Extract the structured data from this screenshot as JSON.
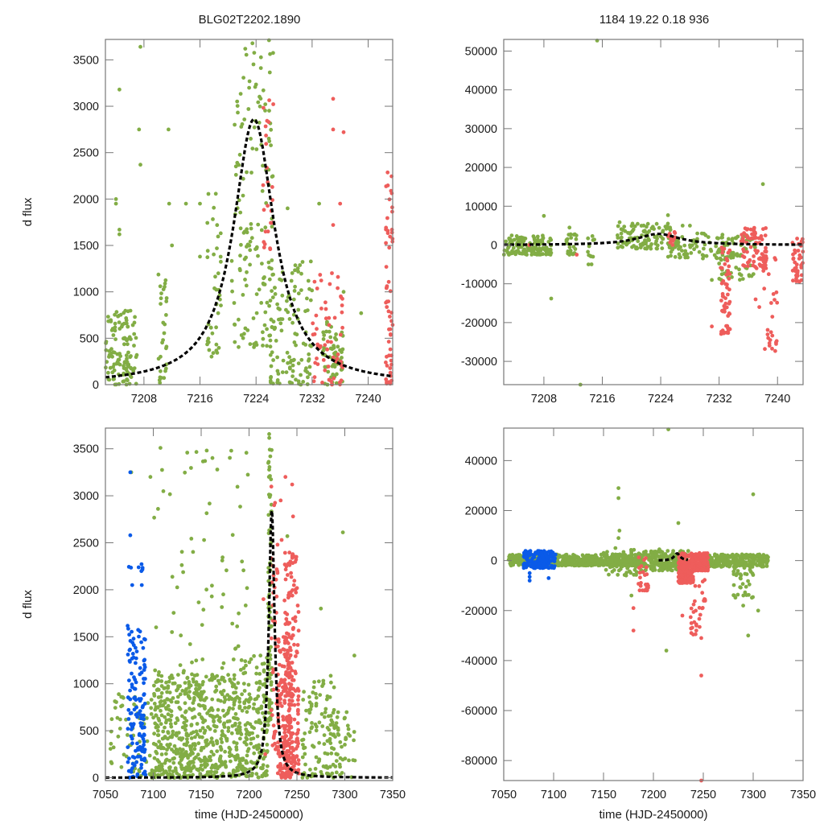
{
  "figure": {
    "title_left": "BLG02T2202.1890",
    "title_right": "1184  19.22  0.18  936",
    "colors": {
      "green": "#82ad45",
      "red": "#ee5d5b",
      "blue": "#0a5ae8",
      "model": "#000000",
      "axis": "#777777"
    }
  },
  "chart_data": [
    {
      "id": "top-left",
      "type": "scatter",
      "title": "BLG02T2202.1890",
      "xlabel": "",
      "ylabel": "d flux",
      "xlim": [
        7202.5,
        7243.5
      ],
      "ylim": [
        0,
        3720
      ],
      "xticks": [
        7208,
        7216,
        7224,
        7232,
        7240
      ],
      "yticks": [
        0,
        500,
        1000,
        1500,
        2000,
        2500,
        3000,
        3500
      ],
      "grid": false,
      "model": {
        "type": "pspl-curve",
        "t0": 7223.7,
        "peak": 2860,
        "tE": 3.4
      },
      "series": [
        {
          "name": "green",
          "clusters": [
            {
              "x": [
                7202.5,
                7207
              ],
              "y": [
                0,
                800
              ],
              "n": 120
            },
            {
              "x": [
                7210,
                7211.5
              ],
              "y": [
                0,
                1200
              ],
              "n": 30
            },
            {
              "x": [
                7217,
                7219
              ],
              "y": [
                300,
                2100
              ],
              "n": 40
            },
            {
              "x": [
                7220.5,
                7226.5
              ],
              "y": [
                400,
                3720
              ],
              "n": 150
            },
            {
              "x": [
                7226,
                7232
              ],
              "y": [
                0,
                1400
              ],
              "n": 120
            },
            {
              "x": [
                7233.5,
                7236.5
              ],
              "y": [
                0,
                700
              ],
              "n": 60
            }
          ],
          "extra": [
            [
              7204.5,
              3180
            ],
            [
              7207.5,
              3640
            ],
            [
              7207.3,
              2750
            ],
            [
              7207.5,
              2370
            ],
            [
              7211.5,
              2750
            ],
            [
              7204,
              2000
            ],
            [
              7204,
              1950
            ],
            [
              7204.5,
              1670
            ],
            [
              7204.5,
              1620
            ],
            [
              7212,
              1500
            ],
            [
              7214,
              1950
            ],
            [
              7211.6,
              1950
            ],
            [
              7216,
              1950
            ],
            [
              7216,
              1380
            ],
            [
              7239,
              770
            ],
            [
              7236.5,
              1000
            ],
            [
              7228.5,
              1900
            ],
            [
              7233,
              1950
            ]
          ]
        },
        {
          "name": "red",
          "clusters": [
            {
              "x": [
                7225,
                7226.5
              ],
              "y": [
                1400,
                3150
              ],
              "n": 25
            },
            {
              "x": [
                7232,
                7236.5
              ],
              "y": [
                0,
                1250
              ],
              "n": 60
            },
            {
              "x": [
                7242.5,
                7243.5
              ],
              "y": [
                0,
                2300
              ],
              "n": 60
            }
          ],
          "extra": [
            [
              7235,
              3080
            ],
            [
              7235,
              2750
            ],
            [
              7236.5,
              2720
            ],
            [
              7236,
              1950
            ],
            [
              7235,
              1720
            ]
          ]
        }
      ]
    },
    {
      "id": "top-right",
      "type": "scatter",
      "title": "1184  19.22  0.18  936",
      "xlabel": "",
      "ylabel": "",
      "xlim": [
        7202.5,
        7243.5
      ],
      "ylim": [
        -36000,
        53000
      ],
      "xticks": [
        7208,
        7216,
        7224,
        7232,
        7240
      ],
      "yticks": [
        -30000,
        -20000,
        -10000,
        0,
        10000,
        20000,
        30000,
        40000,
        50000
      ],
      "grid": false,
      "model": {
        "type": "pspl-curve",
        "t0": 7223.7,
        "peak": 2860,
        "tE": 3.4
      },
      "series": [
        {
          "name": "green",
          "clusters": [
            {
              "x": [
                7202.5,
                7209
              ],
              "y": [
                -2500,
                2500
              ],
              "n": 140
            },
            {
              "x": [
                7211,
                7212.5
              ],
              "y": [
                -2500,
                3000
              ],
              "n": 25
            },
            {
              "x": [
                7214,
                7215
              ],
              "y": [
                -5000,
                3000
              ],
              "n": 12
            },
            {
              "x": [
                7218,
                7225.5
              ],
              "y": [
                -1000,
                6000
              ],
              "n": 110
            },
            {
              "x": [
                7225,
                7234
              ],
              "y": [
                -3500,
                3000
              ],
              "n": 90
            },
            {
              "x": [
                7232,
                7237
              ],
              "y": [
                -9000,
                2500
              ],
              "n": 60
            }
          ],
          "extra": [
            [
              7215.3,
              52700
            ],
            [
              7213,
              -36000
            ],
            [
              7238,
              15700
            ],
            [
              7209,
              -13800
            ],
            [
              7208,
              7500
            ],
            [
              7211.5,
              4500
            ],
            [
              7225,
              7700
            ],
            [
              7227,
              5000
            ],
            [
              7228,
              5000
            ],
            [
              7231,
              -9000
            ]
          ]
        },
        {
          "name": "red",
          "clusters": [
            {
              "x": [
                7232.2,
                7233.5
              ],
              "y": [
                -23000,
                0
              ],
              "n": 55
            },
            {
              "x": [
                7235,
                7238.5
              ],
              "y": [
                -6000,
                4500
              ],
              "n": 80
            },
            {
              "x": [
                7238,
                7240
              ],
              "y": [
                -28000,
                0
              ],
              "n": 25
            },
            {
              "x": [
                7242,
                7243.5
              ],
              "y": [
                -10000,
                2000
              ],
              "n": 40
            },
            {
              "x": [
                7225,
                7226
              ],
              "y": [
                0,
                3500
              ],
              "n": 15
            }
          ],
          "extra": [
            [
              7212.5,
              -2500
            ],
            [
              7206,
              0
            ],
            [
              7231,
              -21000
            ],
            [
              7237,
              -14000
            ],
            [
              7237.5,
              -16000
            ],
            [
              7239,
              -24500
            ]
          ]
        }
      ]
    },
    {
      "id": "bottom-left",
      "type": "scatter",
      "title": "",
      "xlabel": "time (HJD-2450000)",
      "ylabel": "d flux",
      "xlim": [
        7050,
        7350
      ],
      "ylim": [
        -30,
        3720
      ],
      "xticks": [
        7050,
        7100,
        7150,
        7200,
        7250,
        7300,
        7350
      ],
      "yticks": [
        0,
        500,
        1000,
        1500,
        2000,
        2500,
        3000,
        3500
      ],
      "grid": false,
      "model": {
        "type": "pspl-curve",
        "t0": 7223.7,
        "peak": 2860,
        "tE": 3.4
      },
      "series": [
        {
          "name": "green",
          "clusters": [
            {
              "x": [
                7055,
                7100
              ],
              "y": [
                0,
                900
              ],
              "n": 70
            },
            {
              "x": [
                7100,
                7130
              ],
              "y": [
                0,
                1100
              ],
              "n": 200
            },
            {
              "x": [
                7130,
                7190
              ],
              "y": [
                0,
                1100
              ],
              "n": 380
            },
            {
              "x": [
                7190,
                7220
              ],
              "y": [
                0,
                1300
              ],
              "n": 180
            },
            {
              "x": [
                7220,
                7224
              ],
              "y": [
                600,
                3720
              ],
              "n": 80
            },
            {
              "x": [
                7255,
                7290
              ],
              "y": [
                0,
                1100
              ],
              "n": 110
            },
            {
              "x": [
                7290,
                7312
              ],
              "y": [
                0,
                700
              ],
              "n": 40
            },
            {
              "x": [
                7100,
                7200
              ],
              "y": [
                1100,
                3600
              ],
              "n": 70
            }
          ],
          "extra": [
            [
              7077,
              3250
            ],
            [
              7097,
              3200
            ],
            [
              7240,
              2570
            ],
            [
              7298,
              2610
            ],
            [
              7275,
              1800
            ],
            [
              7310,
              1300
            ]
          ]
        },
        {
          "name": "red",
          "clusters": [
            {
              "x": [
                7223,
                7230
              ],
              "y": [
                300,
                3100
              ],
              "n": 40
            },
            {
              "x": [
                7230,
                7245
              ],
              "y": [
                0,
                1500
              ],
              "n": 160
            },
            {
              "x": [
                7237,
                7252
              ],
              "y": [
                0,
                2400
              ],
              "n": 200
            }
          ],
          "extra": [
            [
              7238,
              3200
            ],
            [
              7233,
              2950
            ],
            [
              7245,
              3120
            ],
            [
              7234,
              2530
            ],
            [
              7246,
              2780
            ],
            [
              7215,
              1900
            ],
            [
              7217,
              250
            ]
          ]
        },
        {
          "name": "blue",
          "clusters": [
            {
              "x": [
                7073,
                7092
              ],
              "y": [
                0,
                1500
              ],
              "n": 130
            },
            {
              "x": [
                7073,
                7092
              ],
              "y": [
                1500,
                2300
              ],
              "n": 14
            }
          ],
          "extra": [
            [
              7076,
              3250
            ],
            [
              7076,
              2580
            ],
            [
              7088,
              2050
            ],
            [
              7078,
              2050
            ]
          ]
        }
      ]
    },
    {
      "id": "bottom-right",
      "type": "scatter",
      "title": "",
      "xlabel": "time (HJD-2450000)",
      "ylabel": "",
      "xlim": [
        7050,
        7350
      ],
      "ylim": [
        -88000,
        53000
      ],
      "xticks": [
        7050,
        7100,
        7150,
        7200,
        7250,
        7300,
        7350
      ],
      "yticks": [
        -80000,
        -60000,
        -40000,
        -20000,
        0,
        20000,
        40000
      ],
      "grid": false,
      "model": {
        "type": "pspl-curve",
        "t0": 7223.7,
        "peak": 2860,
        "tE": 3.4
      },
      "series": [
        {
          "name": "green",
          "clusters": [
            {
              "x": [
                7055,
                7190
              ],
              "y": [
                -2000,
                2500
              ],
              "n": 600
            },
            {
              "x": [
                7150,
                7190
              ],
              "y": [
                -6000,
                5000
              ],
              "n": 60
            },
            {
              "x": [
                7190,
                7235
              ],
              "y": [
                -4000,
                4000
              ],
              "n": 200
            },
            {
              "x": [
                7250,
                7315
              ],
              "y": [
                -2500,
                2500
              ],
              "n": 240
            },
            {
              "x": [
                7280,
                7300
              ],
              "y": [
                -15000,
                0
              ],
              "n": 40
            }
          ],
          "extra": [
            [
              7165,
              29000
            ],
            [
              7165,
              25000
            ],
            [
              7166,
              12000
            ],
            [
              7165,
              9000
            ],
            [
              7215,
              52500
            ],
            [
              7213,
              -36000
            ],
            [
              7300,
              26500
            ],
            [
              7225,
              15000
            ],
            [
              7206,
              4500
            ],
            [
              7178,
              -14000
            ],
            [
              7295,
              -30000
            ],
            [
              7290,
              -18000
            ],
            [
              7305,
              -20000
            ]
          ]
        },
        {
          "name": "red",
          "clusters": [
            {
              "x": [
                7185,
                7195
              ],
              "y": [
                -12000,
                2000
              ],
              "n": 25
            },
            {
              "x": [
                7225,
                7240
              ],
              "y": [
                -9000,
                3000
              ],
              "n": 180
            },
            {
              "x": [
                7238,
                7255
              ],
              "y": [
                -4000,
                3000
              ],
              "n": 150
            },
            {
              "x": [
                7237,
                7252
              ],
              "y": [
                -30000,
                -5000
              ],
              "n": 30
            }
          ],
          "extra": [
            [
              7180,
              -19000
            ],
            [
              7180,
              -28000
            ],
            [
              7248,
              -46000
            ],
            [
              7248,
              -88000
            ],
            [
              7238,
              -29000
            ],
            [
              7243,
              -28000
            ],
            [
              7248,
              -31000
            ],
            [
              7229,
              -22000
            ]
          ]
        },
        {
          "name": "blue",
          "clusters": [
            {
              "x": [
                7070,
                7102
              ],
              "y": [
                -3000,
                4000
              ],
              "n": 150
            }
          ],
          "extra": [
            [
              7076,
              -8000
            ],
            [
              7076,
              -5000
            ],
            [
              7076,
              -6500
            ],
            [
              7095,
              -7000
            ],
            [
              7070,
              -1500
            ],
            [
              7090,
              -1500
            ]
          ]
        }
      ]
    }
  ]
}
